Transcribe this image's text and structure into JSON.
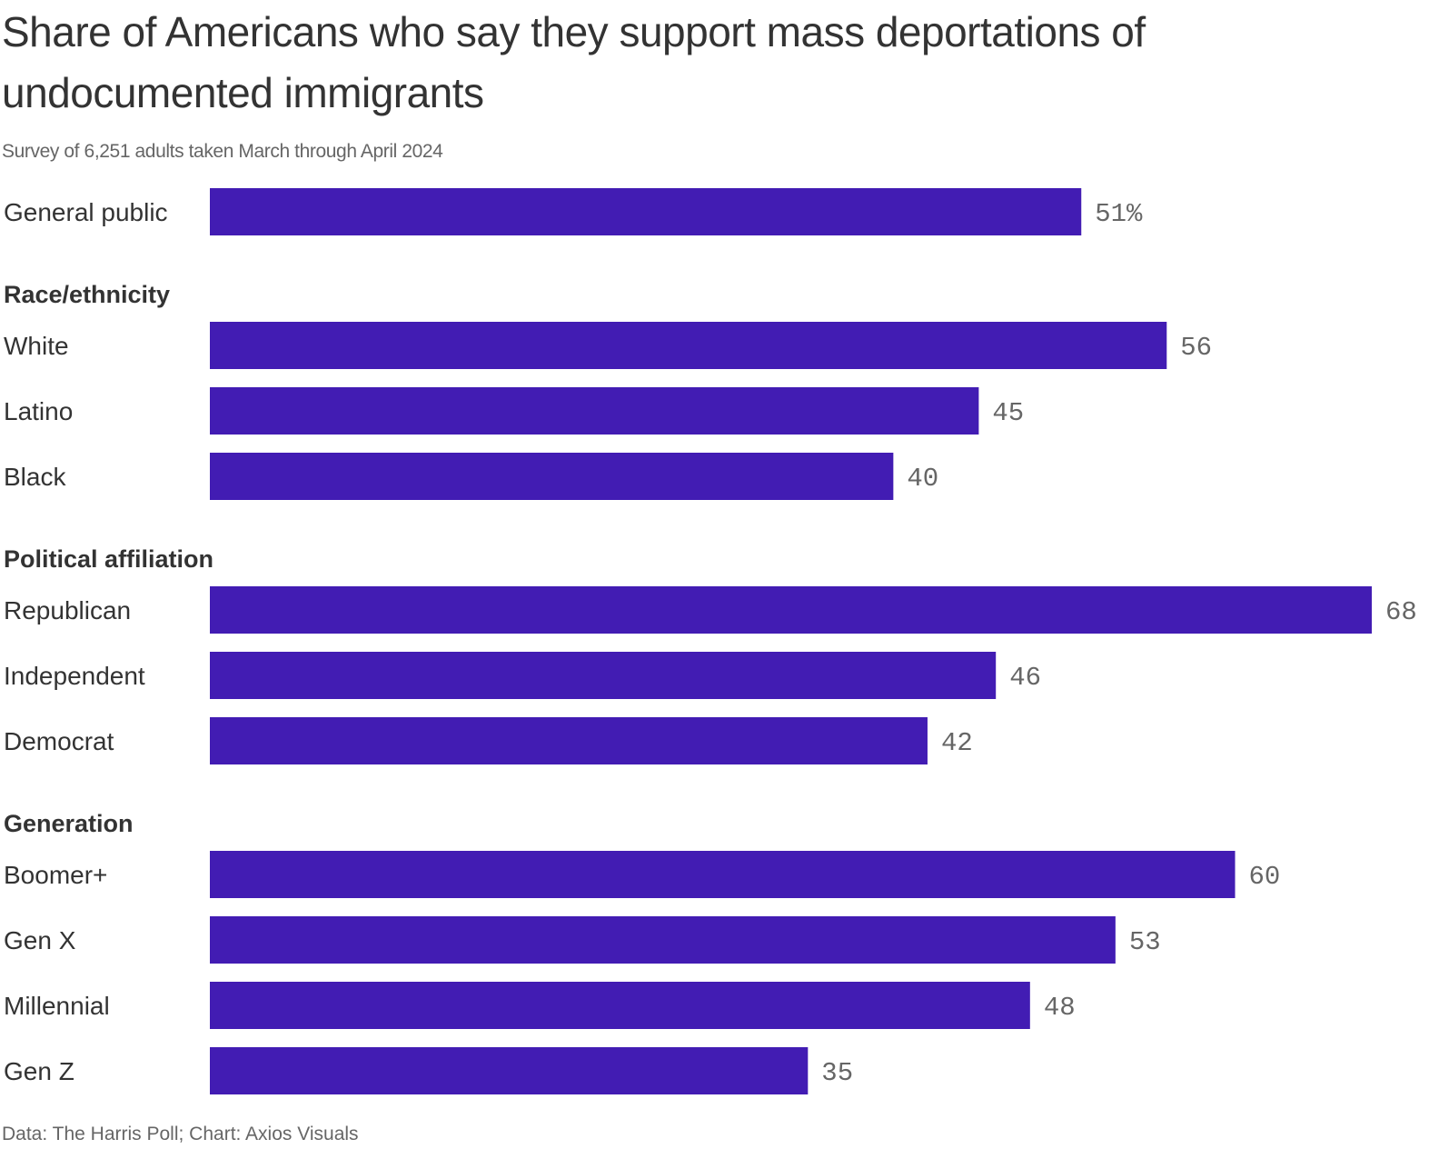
{
  "chart_data": {
    "type": "bar",
    "orientation": "horizontal",
    "title": "Share of Americans who say they support mass deportations of undocumented immigrants",
    "subtitle": "Survey of 6,251 adults taken March through April 2024",
    "source": "Data: The Harris Poll; Chart: Axios Visuals",
    "xlim": [
      0,
      68
    ],
    "grid": false,
    "unit": "%",
    "bar_color": "#421cb3",
    "groups": [
      {
        "name": "",
        "items": [
          {
            "label": "General public",
            "value": 51,
            "display": "51%"
          }
        ]
      },
      {
        "name": "Race/ethnicity",
        "items": [
          {
            "label": "White",
            "value": 56,
            "display": "56"
          },
          {
            "label": "Latino",
            "value": 45,
            "display": "45"
          },
          {
            "label": "Black",
            "value": 40,
            "display": "40"
          }
        ]
      },
      {
        "name": "Political affiliation",
        "items": [
          {
            "label": "Republican",
            "value": 68,
            "display": "68"
          },
          {
            "label": "Independent",
            "value": 46,
            "display": "46"
          },
          {
            "label": "Democrat",
            "value": 42,
            "display": "42"
          }
        ]
      },
      {
        "name": "Generation",
        "items": [
          {
            "label": "Boomer+",
            "value": 60,
            "display": "60"
          },
          {
            "label": "Gen X",
            "value": 53,
            "display": "53"
          },
          {
            "label": "Millennial",
            "value": 48,
            "display": "48"
          },
          {
            "label": "Gen Z",
            "value": 35,
            "display": "35"
          }
        ]
      }
    ]
  }
}
